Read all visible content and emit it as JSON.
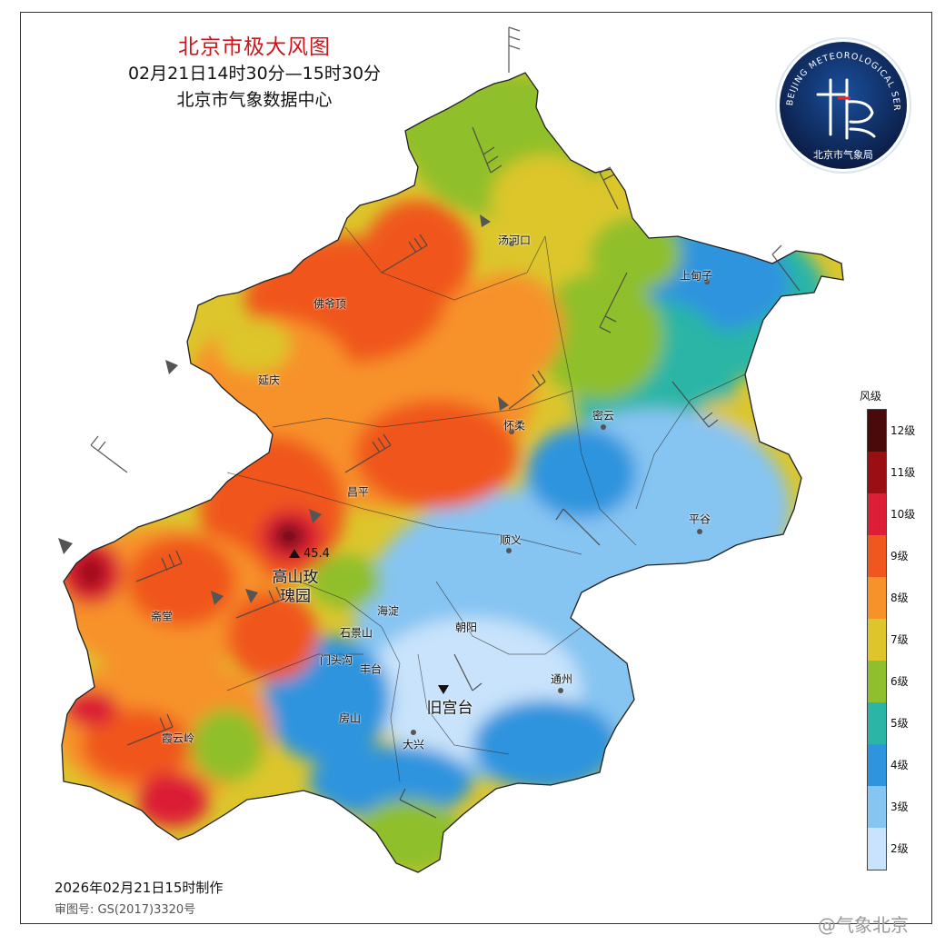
{
  "map": {
    "title": "北京市极大风图",
    "subtitle": "02月21日14时30分—15时30分",
    "source": "北京市气象数据中心",
    "made_time": "2026年02月21日15时制作",
    "review_no": "审图号: GS(2017)3320号",
    "watermark": "@气象北京",
    "logo": {
      "ring_text": "BEIJING METEOROLOGICAL SERVICE",
      "org_name": "北京市气象局"
    },
    "legend": {
      "title": "风级",
      "levels": [
        {
          "label": "12级",
          "color": "#4a0a0a"
        },
        {
          "label": "11级",
          "color": "#9b0f14"
        },
        {
          "label": "10级",
          "color": "#dc1e36"
        },
        {
          "label": "9级",
          "color": "#f0571e"
        },
        {
          "label": "8级",
          "color": "#f7922b"
        },
        {
          "label": "7级",
          "color": "#dcc62c"
        },
        {
          "label": "6级",
          "color": "#8fbf2c"
        },
        {
          "label": "5级",
          "color": "#2ab5a6"
        },
        {
          "label": "4级",
          "color": "#2f94de"
        },
        {
          "label": "3级",
          "color": "#86c4f2"
        },
        {
          "label": "2级",
          "color": "#c8e3fb"
        }
      ]
    },
    "places": {
      "tanghekou": "汤河口",
      "shangdianzi": "上甸子",
      "foyeding": "佛爷顶",
      "yanqing": "延庆",
      "huairou": "怀柔",
      "miyun": "密云",
      "changping": "昌平",
      "pinggu": "平谷",
      "shunyi": "顺义",
      "haidian": "海淀",
      "chaoyang": "朝阳",
      "shijingshan": "石景山",
      "mentougou": "门头沟",
      "fengtai": "丰台",
      "tongzhou": "通州",
      "zhaitang": "斋堂",
      "fangshan": "房山",
      "daxing": "大兴",
      "xiayunling": "霞云岭",
      "gaoshanzhi": "高山玫",
      "gaoshanzhi_line2": "瑰园",
      "jiugongtai": "旧宫台"
    },
    "max_station_value": "45.4"
  }
}
